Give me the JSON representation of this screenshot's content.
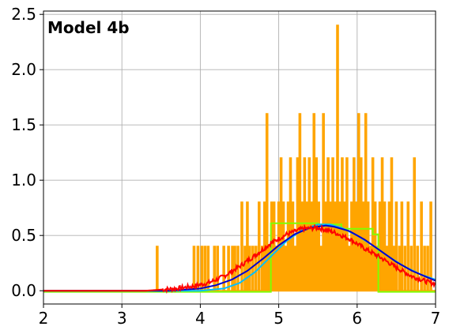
{
  "chart_data": {
    "type": "line",
    "annotation": "Model 4b",
    "xlim": [
      2,
      7
    ],
    "ylim": [
      -0.12,
      2.53
    ],
    "x_ticks": [
      2,
      3,
      4,
      5,
      6,
      7
    ],
    "x_tick_labels": [
      "2",
      "3",
      "4",
      "5",
      "6",
      "7"
    ],
    "y_ticks": [
      0.0,
      0.5,
      1.0,
      1.5,
      2.0,
      2.5
    ],
    "y_tick_labels": [
      "0.0",
      "0.5",
      "1.0",
      "1.5",
      "2.0",
      "2.5"
    ],
    "grid": true,
    "series": [
      {
        "color": "#ffa500",
        "style": "histogram-spikes",
        "x": [
          3.45,
          3.92,
          3.97,
          4.02,
          4.06,
          4.1,
          4.18,
          4.22,
          4.3,
          4.36,
          4.41,
          4.44,
          4.48,
          4.53,
          4.57,
          4.6,
          4.63,
          4.67,
          4.71,
          4.75,
          4.79,
          4.82,
          4.85,
          4.88,
          4.91,
          4.94,
          4.97,
          5.0,
          5.03,
          5.06,
          5.09,
          5.12,
          5.15,
          5.18,
          5.21,
          5.24,
          5.27,
          5.3,
          5.33,
          5.36,
          5.39,
          5.42,
          5.45,
          5.48,
          5.51,
          5.54,
          5.57,
          5.6,
          5.63,
          5.66,
          5.69,
          5.72,
          5.75,
          5.78,
          5.81,
          5.84,
          5.87,
          5.9,
          5.93,
          5.96,
          5.99,
          6.02,
          6.05,
          6.08,
          6.11,
          6.14,
          6.17,
          6.2,
          6.23,
          6.26,
          6.29,
          6.32,
          6.35,
          6.38,
          6.41,
          6.44,
          6.47,
          6.5,
          6.54,
          6.57,
          6.61,
          6.65,
          6.69,
          6.73,
          6.77,
          6.82,
          6.86,
          6.9,
          6.94
        ],
        "values": [
          0.4,
          0.4,
          0.4,
          0.4,
          0.4,
          0.4,
          0.4,
          0.4,
          0.4,
          0.4,
          0.4,
          0.4,
          0.4,
          0.8,
          0.4,
          0.8,
          0.4,
          0.4,
          0.4,
          0.8,
          0.4,
          0.8,
          1.6,
          0.4,
          0.8,
          0.8,
          0.4,
          0.8,
          1.2,
          0.8,
          0.4,
          0.8,
          1.2,
          0.8,
          0.4,
          1.2,
          1.6,
          0.8,
          1.2,
          0.8,
          1.2,
          0.8,
          1.6,
          1.2,
          0.8,
          0.4,
          1.6,
          0.8,
          1.2,
          0.8,
          1.2,
          0.8,
          2.4,
          0.8,
          1.2,
          0.8,
          1.2,
          0.4,
          0.8,
          1.2,
          0.8,
          1.6,
          1.2,
          0.8,
          1.6,
          0.8,
          0.4,
          1.2,
          0.8,
          0.4,
          0.8,
          1.2,
          0.8,
          0.4,
          0.8,
          1.2,
          0.4,
          0.8,
          0.4,
          0.8,
          0.4,
          0.8,
          0.4,
          1.2,
          0.4,
          0.8,
          0.4,
          0.4,
          0.8
        ]
      },
      {
        "color": "#7fff00",
        "style": "step",
        "x": [
          2.0,
          4.85,
          4.9,
          5.1,
          5.5,
          5.8,
          6.2,
          6.27,
          7.0
        ],
        "values": [
          -0.01,
          -0.01,
          0.61,
          0.61,
          0.6,
          0.56,
          0.51,
          -0.01,
          -0.01
        ]
      },
      {
        "color": "#00bfff",
        "style": "line",
        "x": [
          2.0,
          4.0,
          4.3,
          4.5,
          4.7,
          4.9,
          5.1,
          5.3,
          5.5,
          5.65,
          5.8,
          6.0,
          6.2,
          6.4,
          6.6,
          6.8,
          7.0
        ],
        "values": [
          0.0,
          0.0,
          0.02,
          0.07,
          0.17,
          0.31,
          0.45,
          0.55,
          0.6,
          0.6,
          0.57,
          0.5,
          0.41,
          0.31,
          0.22,
          0.15,
          0.1
        ]
      },
      {
        "color": "#0000cd",
        "style": "line",
        "x": [
          2.0,
          3.6,
          3.8,
          4.0,
          4.2,
          4.4,
          4.6,
          4.8,
          5.0,
          5.2,
          5.4,
          5.6,
          5.7,
          5.9,
          6.1,
          6.3,
          6.5,
          6.7,
          6.9,
          7.0
        ],
        "values": [
          0.0,
          0.0,
          0.01,
          0.02,
          0.05,
          0.1,
          0.18,
          0.29,
          0.41,
          0.51,
          0.57,
          0.59,
          0.58,
          0.54,
          0.46,
          0.36,
          0.26,
          0.18,
          0.12,
          0.09
        ]
      },
      {
        "color": "#ff0000",
        "style": "noisy-line",
        "x": [
          2.0,
          3.3,
          3.5,
          3.7,
          3.9,
          4.1,
          4.3,
          4.5,
          4.7,
          4.9,
          5.1,
          5.3,
          5.5,
          5.7,
          5.9,
          6.1,
          6.3,
          6.5,
          6.7,
          6.9,
          7.0
        ],
        "values": [
          0.0,
          0.0,
          0.01,
          0.02,
          0.04,
          0.07,
          0.13,
          0.22,
          0.32,
          0.43,
          0.51,
          0.56,
          0.57,
          0.53,
          0.47,
          0.38,
          0.3,
          0.21,
          0.13,
          0.08,
          0.06
        ]
      }
    ]
  }
}
